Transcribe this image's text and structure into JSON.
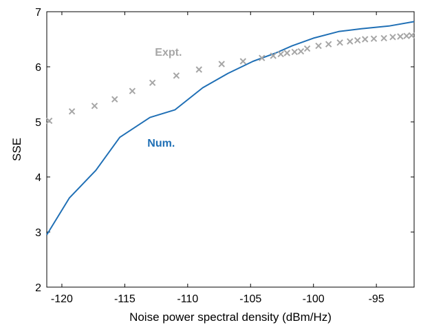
{
  "chart_data": {
    "type": "line",
    "xlabel": "Noise power spectral density (dBm/Hz)",
    "ylabel": "SSE",
    "xlim": [
      -121.2,
      -92
    ],
    "ylim": [
      2,
      7
    ],
    "xticks": [
      -120,
      -115,
      -110,
      -105,
      -100,
      -95
    ],
    "yticks": [
      2,
      3,
      4,
      5,
      6,
      7
    ],
    "grid": false,
    "series": [
      {
        "name": "Num.",
        "style": "line",
        "color": "#1f6fb5",
        "x": [
          -121.2,
          -119.4,
          -117.3,
          -115.4,
          -113.0,
          -111.0,
          -108.8,
          -106.8,
          -104.8,
          -103.0,
          -101.7,
          -100.0,
          -98.0,
          -96.2,
          -94.0,
          -92.0
        ],
        "y": [
          2.95,
          3.62,
          4.12,
          4.72,
          5.08,
          5.22,
          5.62,
          5.88,
          6.1,
          6.25,
          6.38,
          6.52,
          6.64,
          6.69,
          6.74,
          6.82
        ]
      },
      {
        "name": "Expt.",
        "style": "marker-x",
        "color": "#a6a6a6",
        "x": [
          -121.0,
          -119.2,
          -117.4,
          -115.8,
          -114.4,
          -112.8,
          -110.9,
          -109.1,
          -107.3,
          -105.6,
          -104.1,
          -103.2,
          -102.6,
          -102.1,
          -101.5,
          -101.0,
          -100.5,
          -99.6,
          -98.8,
          -97.9,
          -97.1,
          -96.5,
          -95.9,
          -95.2,
          -94.4,
          -93.7,
          -93.1,
          -92.6,
          -92.2
        ],
        "y": [
          5.02,
          5.19,
          5.29,
          5.41,
          5.56,
          5.71,
          5.84,
          5.95,
          6.05,
          6.1,
          6.16,
          6.2,
          6.23,
          6.25,
          6.27,
          6.28,
          6.33,
          6.38,
          6.41,
          6.44,
          6.46,
          6.48,
          6.5,
          6.51,
          6.52,
          6.54,
          6.55,
          6.56,
          6.57
        ]
      }
    ],
    "annotations": [
      {
        "text": "Expt.",
        "x": -112.6,
        "y": 6.2,
        "color": "#a6a6a6"
      },
      {
        "text": "Num.",
        "x": -113.2,
        "y": 4.55,
        "color": "#1f6fb5"
      }
    ]
  }
}
